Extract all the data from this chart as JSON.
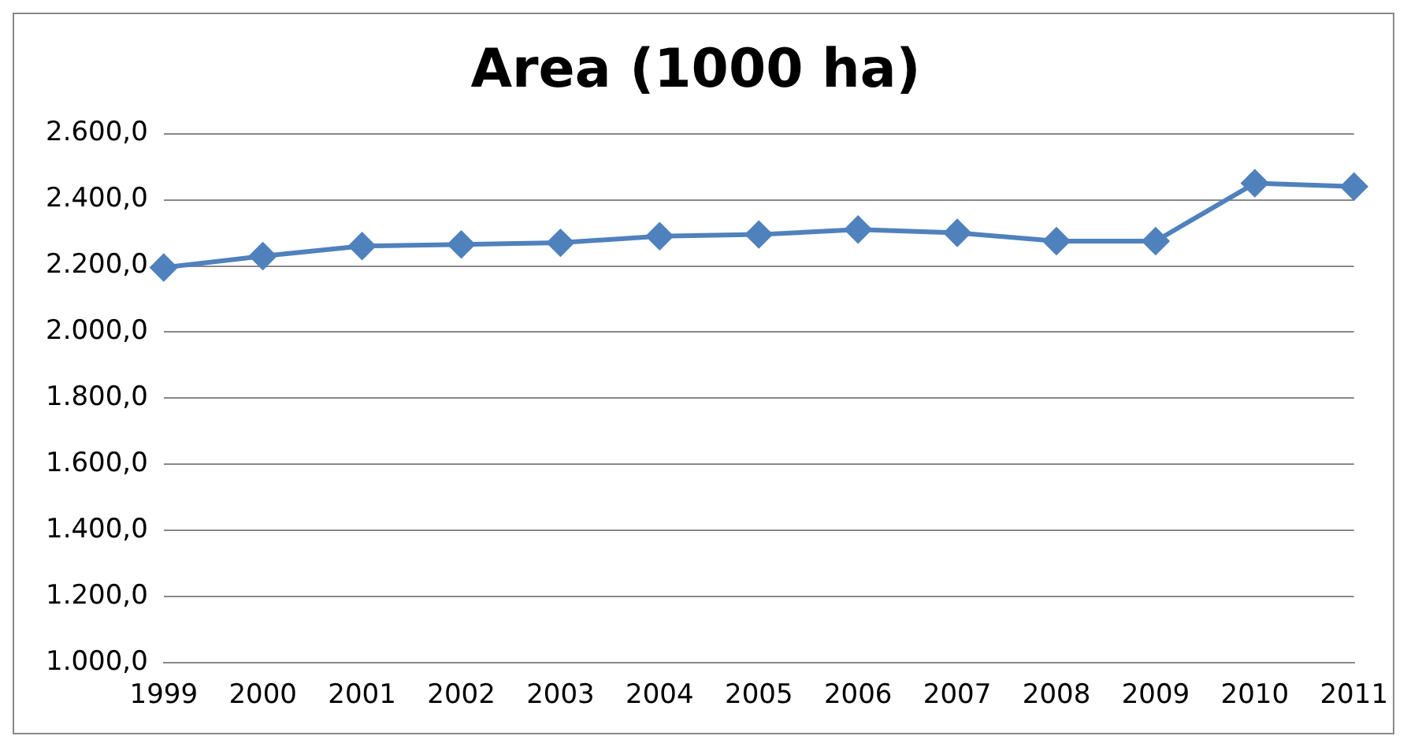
{
  "chart_data": {
    "type": "line",
    "title": "Area (1000 ha)",
    "categories": [
      "1999",
      "2000",
      "2001",
      "2002",
      "2003",
      "2004",
      "2005",
      "2006",
      "2007",
      "2008",
      "2009",
      "2010",
      "2011"
    ],
    "series": [
      {
        "color": "#4f81bd",
        "values": [
          2195,
          2230,
          2260,
          2265,
          2270,
          2290,
          2295,
          2310,
          2300,
          2275,
          2275,
          2450,
          2440
        ]
      }
    ],
    "ylim": [
      1000,
      2600
    ],
    "yticks": [
      {
        "value": 1000,
        "label": "1.000,0"
      },
      {
        "value": 1200,
        "label": "1.200,0"
      },
      {
        "value": 1400,
        "label": "1.400,0"
      },
      {
        "value": 1600,
        "label": "1.600,0"
      },
      {
        "value": 1800,
        "label": "1.800,0"
      },
      {
        "value": 2000,
        "label": "2.000,0"
      },
      {
        "value": 2200,
        "label": "2.200,0"
      },
      {
        "value": 2400,
        "label": "2.400,0"
      },
      {
        "value": 2600,
        "label": "2.600,0"
      }
    ],
    "grid": "y",
    "marker": "diamond",
    "legend": false
  }
}
